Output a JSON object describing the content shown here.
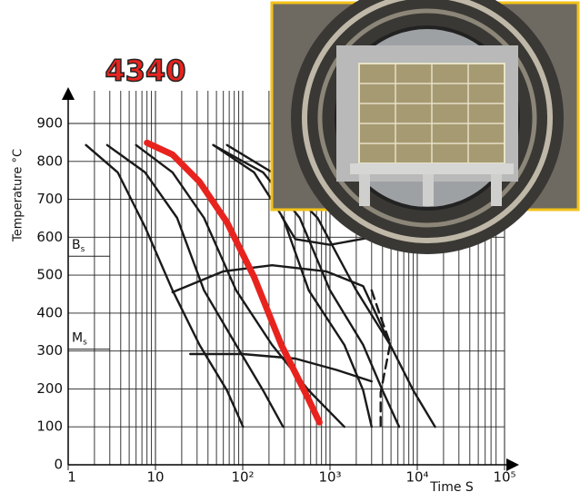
{
  "chart_data": {
    "type": "line",
    "title": "4340",
    "y_label": "Temperature °C",
    "x_label": "Time S",
    "x_log": true,
    "grid": true,
    "xlim": [
      1,
      100000
    ],
    "ylim": [
      0,
      900
    ],
    "xticks": [
      1,
      10,
      {
        "value": 100,
        "label": "10²"
      },
      {
        "value": 1000,
        "label": "10³"
      },
      {
        "value": 10000,
        "label": "10⁴"
      },
      {
        "value": 100000,
        "label": "10⁵"
      }
    ],
    "x_minor_ticks": [
      2,
      3,
      4,
      5,
      6,
      7,
      8,
      9,
      20,
      30,
      40,
      50,
      60,
      70,
      80,
      90,
      200,
      300,
      400,
      500,
      600,
      700,
      800,
      900,
      2000,
      3000,
      4000,
      5000,
      6000,
      7000,
      8000,
      9000,
      20000,
      30000,
      40000,
      50000,
      60000,
      70000,
      80000
    ],
    "yticks": [
      0,
      100,
      200,
      300,
      400,
      500,
      600,
      700,
      800,
      900
    ],
    "annotations": [
      {
        "main": "B",
        "sub": "s",
        "value": 550
      },
      {
        "main": "M",
        "sub": "s",
        "value": 305
      }
    ],
    "series": [
      {
        "color": "#e8231e",
        "x": [
          8,
          15.7,
          32,
          66,
          135,
          277,
          569,
          758
        ],
        "values": [
          849,
          818,
          746,
          639,
          495,
          316,
          172,
          112
        ]
      },
      {
        "color": "#1a1a1a",
        "x": [
          1.6,
          3.7,
          7.6,
          15.7,
          32,
          66,
          101
        ],
        "values": [
          843,
          771,
          627,
          460,
          316,
          196,
          100
        ]
      },
      {
        "color": "#1a1a1a",
        "x": [
          2.8,
          7.6,
          17.7,
          36,
          84,
          171,
          290
        ],
        "values": [
          843,
          771,
          651,
          460,
          316,
          196,
          100
        ]
      },
      {
        "color": "#1a1a1a",
        "x": [
          6,
          15.7,
          36,
          84,
          217,
          570,
          1460
        ],
        "values": [
          843,
          771,
          651,
          460,
          316,
          196,
          100
        ]
      },
      {
        "color": "#1a1a1a",
        "x": [
          46,
          135,
          290,
          570,
          1460,
          2400,
          3000
        ],
        "values": [
          843,
          771,
          651,
          460,
          316,
          196,
          100
        ]
      },
      {
        "color": "#1a1a1a",
        "x": [
          46,
          171,
          450,
          1000,
          2400,
          4000,
          6200
        ],
        "values": [
          843,
          771,
          651,
          460,
          316,
          196,
          100
        ]
      },
      {
        "color": "#1a1a1a",
        "x": [
          66,
          217,
          720,
          2000,
          4900,
          9000,
          16000
        ],
        "values": [
          843,
          771,
          651,
          460,
          316,
          196,
          100
        ]
      },
      {
        "color": "#1a1a1a",
        "x": [
          15.7,
          60,
          217,
          900,
          2400,
          4900
        ],
        "values": [
          455,
          510,
          526,
          510,
          471,
          316
        ]
      },
      {
        "color": "#1a1a1a",
        "x": [
          25,
          100,
          400,
          1200,
          3000
        ],
        "values": [
          292,
          292,
          280,
          250,
          220
        ]
      },
      {
        "color": "#1a1a1a",
        "x": [
          280,
          400,
          1000,
          3000,
          6000
        ],
        "values": [
          655,
          595,
          580,
          600,
          620
        ]
      },
      {
        "color": "#1a1a1a",
        "dashed": true,
        "x": [
          3000,
          3800,
          4900,
          3800,
          3800
        ],
        "values": [
          460,
          390,
          320,
          190,
          100
        ]
      }
    ]
  }
}
